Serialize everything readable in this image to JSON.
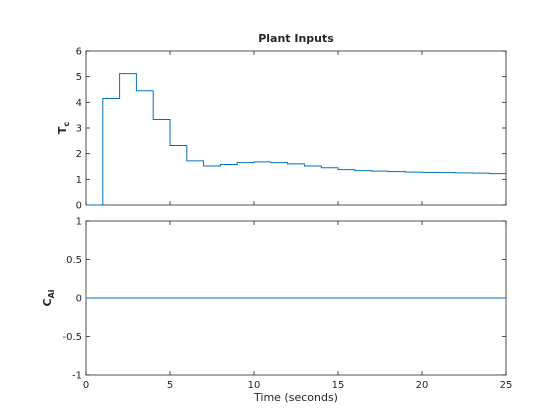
{
  "chart_data": [
    {
      "type": "line",
      "step": true,
      "title": "Plant Inputs",
      "ylabel_main": "T",
      "ylabel_sub": "c",
      "xlim": [
        0,
        25
      ],
      "ylim": [
        0,
        6
      ],
      "xticks": [
        0,
        5,
        10,
        15,
        20,
        25
      ],
      "xtick_labels_visible": false,
      "yticks": [
        0,
        1,
        2,
        3,
        4,
        5,
        6
      ],
      "ytick_labels": [
        "0",
        "1",
        "2",
        "3",
        "4",
        "5",
        "6"
      ],
      "grid": false,
      "color": "#0072bd",
      "series": [
        {
          "x": [
            0,
            1,
            2,
            3,
            4,
            5,
            6,
            7,
            8,
            9,
            10,
            11,
            12,
            13,
            14,
            15,
            16,
            17,
            18,
            19,
            20,
            21,
            22,
            23,
            24,
            25
          ],
          "y": [
            0,
            4.15,
            5.12,
            4.45,
            3.33,
            2.32,
            1.72,
            1.52,
            1.58,
            1.65,
            1.68,
            1.65,
            1.6,
            1.52,
            1.45,
            1.38,
            1.34,
            1.32,
            1.3,
            1.28,
            1.27,
            1.26,
            1.25,
            1.24,
            1.22,
            1.22
          ]
        }
      ]
    },
    {
      "type": "line",
      "step": true,
      "title": "",
      "ylabel_main": "C",
      "ylabel_sub": "Ai",
      "xlabel": "Time (seconds)",
      "xlim": [
        0,
        25
      ],
      "ylim": [
        -1,
        1
      ],
      "xticks": [
        0,
        5,
        10,
        15,
        20,
        25
      ],
      "xtick_labels": [
        "0",
        "5",
        "10",
        "15",
        "20",
        "25"
      ],
      "yticks": [
        -1,
        -0.5,
        0,
        0.5,
        1
      ],
      "ytick_labels": [
        "-1",
        "-0.5",
        "0",
        "0.5",
        "1"
      ],
      "grid": false,
      "color": "#0072bd",
      "series": [
        {
          "x": [
            0,
            25
          ],
          "y": [
            0,
            0
          ]
        }
      ]
    }
  ]
}
